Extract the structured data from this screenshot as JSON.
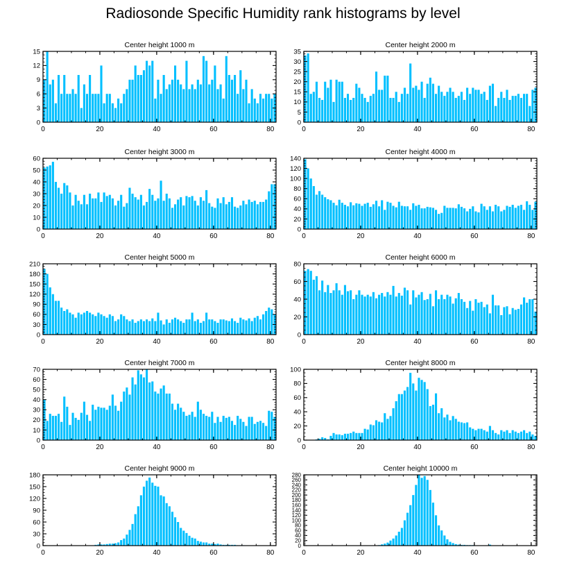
{
  "title": "Radiosonde Specific Humidity rank histograms by level",
  "bar_color": "#00bfff",
  "chart_data": [
    {
      "type": "bar",
      "title": "Center height 1000 m",
      "xlim": [
        0,
        82
      ],
      "ylim": [
        0,
        15
      ],
      "yticks": [
        0,
        3,
        6,
        9,
        12,
        15
      ],
      "xticks": [
        0,
        20,
        40,
        60,
        80
      ],
      "values": [
        9,
        15,
        8,
        9,
        4,
        10,
        6,
        10,
        6,
        6,
        7,
        6,
        10,
        3,
        8,
        6,
        10,
        6,
        6,
        6,
        12,
        4,
        6,
        6,
        4,
        3,
        5,
        4,
        6,
        7,
        9,
        9,
        12,
        10,
        10,
        11,
        13,
        12,
        13,
        5,
        9,
        6,
        10,
        7,
        8,
        9,
        12,
        9,
        8,
        7,
        13,
        7,
        8,
        7,
        9,
        8,
        14,
        13,
        8,
        9,
        12,
        7,
        8,
        5,
        14,
        10,
        9,
        10,
        6,
        11,
        7,
        9,
        4,
        7,
        5,
        4,
        6,
        5,
        6,
        6,
        5,
        6
      ]
    },
    {
      "type": "bar",
      "title": "Center height 2000 m",
      "xlim": [
        0,
        82
      ],
      "ylim": [
        0,
        35
      ],
      "yticks": [
        0,
        5,
        10,
        15,
        20,
        25,
        30,
        35
      ],
      "xticks": [
        0,
        20,
        40,
        60,
        80
      ],
      "values": [
        33,
        34,
        14,
        15,
        20,
        12,
        11,
        20,
        17,
        21,
        10,
        21,
        20,
        20,
        12,
        14,
        11,
        12,
        19,
        17,
        14,
        12,
        10,
        13,
        14,
        25,
        16,
        16,
        23,
        23,
        12,
        12,
        15,
        10,
        14,
        17,
        14,
        29,
        17,
        18,
        16,
        20,
        12,
        19,
        22,
        19,
        14,
        18,
        15,
        13,
        15,
        17,
        15,
        12,
        13,
        15,
        11,
        17,
        14,
        17,
        16,
        16,
        14,
        15,
        11,
        18,
        19,
        8,
        12,
        15,
        12,
        16,
        11,
        13,
        13,
        14,
        12,
        14,
        14,
        8,
        16,
        17
      ]
    },
    {
      "type": "bar",
      "title": "Center height 3000 m",
      "xlim": [
        0,
        82
      ],
      "ylim": [
        0,
        60
      ],
      "yticks": [
        0,
        10,
        20,
        30,
        40,
        50,
        60
      ],
      "xticks": [
        0,
        20,
        40,
        60,
        80
      ],
      "values": [
        52,
        53,
        54,
        57,
        40,
        35,
        30,
        39,
        37,
        31,
        20,
        29,
        24,
        21,
        29,
        21,
        30,
        26,
        26,
        31,
        23,
        31,
        28,
        29,
        26,
        20,
        24,
        29,
        19,
        22,
        35,
        30,
        27,
        25,
        29,
        20,
        23,
        34,
        29,
        24,
        26,
        41,
        24,
        30,
        26,
        18,
        21,
        25,
        27,
        20,
        28,
        27,
        28,
        24,
        20,
        27,
        24,
        33,
        22,
        19,
        18,
        26,
        22,
        27,
        21,
        23,
        27,
        19,
        18,
        20,
        24,
        21,
        25,
        23,
        24,
        21,
        23,
        23,
        25,
        32,
        38,
        38
      ]
    },
    {
      "type": "bar",
      "title": "Center height 4000 m",
      "xlim": [
        0,
        82
      ],
      "ylim": [
        0,
        140
      ],
      "yticks": [
        0,
        20,
        40,
        60,
        80,
        100,
        120,
        140
      ],
      "xticks": [
        0,
        20,
        40,
        60,
        80
      ],
      "values": [
        138,
        120,
        100,
        85,
        68,
        75,
        68,
        63,
        59,
        57,
        52,
        47,
        58,
        52,
        48,
        45,
        53,
        47,
        51,
        50,
        46,
        50,
        52,
        44,
        49,
        56,
        45,
        57,
        38,
        54,
        52,
        46,
        43,
        54,
        46,
        45,
        45,
        38,
        51,
        46,
        48,
        41,
        41,
        44,
        43,
        42,
        38,
        30,
        32,
        46,
        42,
        42,
        42,
        41,
        49,
        44,
        41,
        35,
        40,
        45,
        35,
        33,
        50,
        45,
        38,
        45,
        35,
        48,
        45,
        35,
        38,
        46,
        44,
        48,
        42,
        46,
        48,
        38,
        55,
        48,
        38,
        54
      ]
    },
    {
      "type": "bar",
      "title": "Center height 5000 m",
      "xlim": [
        0,
        82
      ],
      "ylim": [
        0,
        210
      ],
      "yticks": [
        0,
        30,
        60,
        90,
        120,
        150,
        180,
        210
      ],
      "xticks": [
        0,
        20,
        40,
        60,
        80
      ],
      "values": [
        195,
        180,
        140,
        120,
        100,
        100,
        80,
        70,
        75,
        65,
        60,
        50,
        65,
        60,
        65,
        70,
        65,
        60,
        55,
        65,
        60,
        55,
        50,
        60,
        55,
        40,
        45,
        60,
        55,
        45,
        40,
        45,
        35,
        40,
        45,
        40,
        45,
        40,
        48,
        40,
        65,
        42,
        30,
        45,
        35,
        45,
        50,
        45,
        40,
        35,
        45,
        45,
        65,
        40,
        45,
        35,
        40,
        65,
        45,
        45,
        40,
        35,
        45,
        45,
        42,
        40,
        48,
        40,
        35,
        50,
        45,
        42,
        48,
        40,
        50,
        55,
        45,
        60,
        70,
        80,
        75,
        60
      ]
    },
    {
      "type": "bar",
      "title": "Center height 6000 m",
      "xlim": [
        0,
        82
      ],
      "ylim": [
        0,
        80
      ],
      "yticks": [
        0,
        20,
        40,
        60,
        80
      ],
      "xticks": [
        0,
        20,
        40,
        60,
        80
      ],
      "values": [
        72,
        74,
        72,
        62,
        66,
        50,
        61,
        48,
        56,
        47,
        50,
        58,
        50,
        45,
        56,
        49,
        50,
        40,
        45,
        50,
        45,
        43,
        45,
        43,
        48,
        41,
        45,
        47,
        43,
        48,
        45,
        55,
        43,
        47,
        44,
        53,
        50,
        34,
        50,
        42,
        45,
        48,
        39,
        40,
        46,
        32,
        50,
        40,
        45,
        40,
        45,
        43,
        35,
        41,
        47,
        40,
        37,
        30,
        38,
        27,
        40,
        36,
        37,
        31,
        34,
        24,
        45,
        33,
        33,
        22,
        31,
        32,
        23,
        30,
        28,
        29,
        34,
        42,
        36,
        40,
        40,
        26
      ]
    },
    {
      "type": "bar",
      "title": "Center height 7000 m",
      "xlim": [
        0,
        82
      ],
      "ylim": [
        0,
        70
      ],
      "yticks": [
        0,
        10,
        20,
        30,
        40,
        50,
        60,
        70
      ],
      "xticks": [
        0,
        20,
        40,
        60,
        80
      ],
      "values": [
        40,
        19,
        26,
        24,
        24,
        26,
        18,
        43,
        33,
        15,
        27,
        22,
        20,
        27,
        38,
        25,
        19,
        35,
        30,
        33,
        32,
        32,
        30,
        34,
        45,
        34,
        29,
        38,
        48,
        52,
        45,
        62,
        55,
        69,
        65,
        62,
        70,
        57,
        58,
        48,
        46,
        51,
        54,
        46,
        46,
        36,
        30,
        36,
        32,
        28,
        24,
        25,
        28,
        23,
        38,
        30,
        26,
        24,
        23,
        28,
        17,
        23,
        18,
        24,
        22,
        23,
        19,
        15,
        24,
        21,
        18,
        14,
        23,
        23,
        16,
        18,
        19,
        17,
        14,
        29,
        28,
        23
      ]
    },
    {
      "type": "bar",
      "title": "Center height 8000 m",
      "xlim": [
        0,
        82
      ],
      "ylim": [
        0,
        100
      ],
      "yticks": [
        0,
        20,
        40,
        60,
        80,
        100
      ],
      "xticks": [
        0,
        20,
        40,
        60,
        80
      ],
      "values": [
        0,
        0,
        0,
        0,
        1,
        2,
        4,
        3,
        1,
        6,
        10,
        8,
        8,
        7,
        9,
        9,
        10,
        12,
        10,
        10,
        10,
        16,
        15,
        22,
        21,
        28,
        26,
        25,
        38,
        30,
        34,
        45,
        55,
        65,
        65,
        70,
        75,
        95,
        80,
        70,
        88,
        85,
        82,
        72,
        48,
        50,
        66,
        38,
        45,
        32,
        36,
        28,
        34,
        30,
        26,
        25,
        24,
        25,
        18,
        16,
        14,
        16,
        16,
        14,
        12,
        20,
        14,
        10,
        8,
        14,
        12,
        14,
        10,
        14,
        12,
        10,
        12,
        14,
        10,
        12,
        8,
        6
      ]
    },
    {
      "type": "bar",
      "title": "Center height 9000 m",
      "xlim": [
        0,
        82
      ],
      "ylim": [
        0,
        180
      ],
      "yticks": [
        0,
        30,
        60,
        90,
        120,
        150,
        180
      ],
      "xticks": [
        0,
        20,
        40,
        60,
        80
      ],
      "values": [
        0,
        0,
        0,
        0,
        0,
        0,
        0,
        0,
        0,
        0,
        0,
        0,
        0,
        0,
        0,
        0,
        0,
        0,
        2,
        3,
        3,
        3,
        4,
        5,
        5,
        6,
        8,
        14,
        18,
        28,
        40,
        55,
        80,
        100,
        128,
        150,
        165,
        173,
        160,
        152,
        150,
        128,
        125,
        108,
        100,
        86,
        72,
        60,
        45,
        38,
        32,
        25,
        20,
        18,
        12,
        10,
        8,
        8,
        5,
        5,
        4,
        5,
        3,
        2,
        2,
        2,
        2,
        2,
        1,
        1,
        1,
        0,
        0,
        0,
        0,
        0,
        0,
        0,
        0,
        0,
        0,
        0
      ]
    },
    {
      "type": "bar",
      "title": "Center height 10000 m",
      "xlim": [
        0,
        82
      ],
      "ylim": [
        0,
        280
      ],
      "yticks": [
        0,
        20,
        40,
        60,
        80,
        100,
        120,
        140,
        160,
        180,
        200,
        220,
        240,
        260,
        280
      ],
      "xticks": [
        0,
        20,
        40,
        60,
        80
      ],
      "values": [
        0,
        0,
        0,
        0,
        0,
        0,
        0,
        0,
        0,
        0,
        0,
        0,
        0,
        0,
        0,
        0,
        0,
        0,
        0,
        0,
        0,
        0,
        0,
        0,
        0,
        0,
        2,
        5,
        8,
        12,
        20,
        28,
        40,
        55,
        70,
        100,
        130,
        160,
        200,
        240,
        280,
        268,
        275,
        260,
        220,
        170,
        120,
        80,
        60,
        40,
        25,
        15,
        10,
        6,
        4,
        3,
        3,
        2,
        2,
        2,
        1,
        1,
        1,
        1,
        1,
        4,
        1,
        0,
        0,
        0,
        0,
        0,
        0,
        0,
        0,
        0,
        0,
        0,
        0,
        0,
        0,
        0
      ]
    }
  ]
}
